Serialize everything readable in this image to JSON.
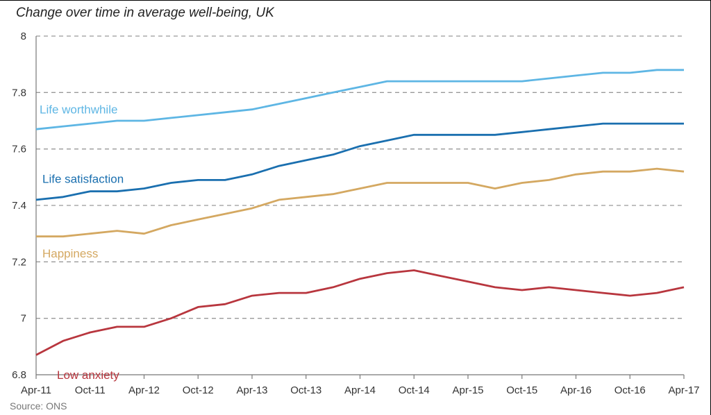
{
  "title": "Change over time in average well-being, UK",
  "source": "Source: ONS",
  "chart_data": {
    "type": "line",
    "title": "Change over time in average well-being, UK",
    "xlabel": "",
    "ylabel": "",
    "ylim": [
      6.8,
      8.0
    ],
    "yticks": [
      "6.8",
      "7",
      "7.2",
      "7.4",
      "7.6",
      "7.8",
      "8"
    ],
    "ytick_values": [
      6.8,
      7.0,
      7.2,
      7.4,
      7.6,
      7.8,
      8.0
    ],
    "grid": "horizontal dashed",
    "x": [
      "Apr-11",
      "Jul-11",
      "Oct-11",
      "Jan-12",
      "Apr-12",
      "Jul-12",
      "Oct-12",
      "Jan-13",
      "Apr-13",
      "Jul-13",
      "Oct-13",
      "Jan-14",
      "Apr-14",
      "Jul-14",
      "Oct-14",
      "Jan-15",
      "Apr-15",
      "Jul-15",
      "Oct-15",
      "Jan-16",
      "Apr-16",
      "Jul-16",
      "Oct-16",
      "Jan-17",
      "Apr-17"
    ],
    "xticks": [
      "Apr-11",
      "Oct-11",
      "Apr-12",
      "Oct-12",
      "Apr-13",
      "Oct-13",
      "Apr-14",
      "Oct-14",
      "Apr-15",
      "Oct-15",
      "Apr-16",
      "Oct-16",
      "Apr-17"
    ],
    "series": [
      {
        "name": "Life worthwhile",
        "color": "#5eb6e4",
        "values": [
          7.67,
          7.68,
          7.69,
          7.7,
          7.7,
          7.71,
          7.72,
          7.73,
          7.74,
          7.76,
          7.78,
          7.8,
          7.82,
          7.84,
          7.84,
          7.84,
          7.84,
          7.84,
          7.84,
          7.85,
          7.86,
          7.87,
          7.87,
          7.88,
          7.88
        ]
      },
      {
        "name": "Life satisfaction",
        "color": "#1a6faf",
        "values": [
          7.42,
          7.43,
          7.45,
          7.45,
          7.46,
          7.48,
          7.49,
          7.49,
          7.51,
          7.54,
          7.56,
          7.58,
          7.61,
          7.63,
          7.65,
          7.65,
          7.65,
          7.65,
          7.66,
          7.67,
          7.68,
          7.69,
          7.69,
          7.69,
          7.69
        ]
      },
      {
        "name": "Happiness",
        "color": "#d4a861",
        "values": [
          7.29,
          7.29,
          7.3,
          7.31,
          7.3,
          7.33,
          7.35,
          7.37,
          7.39,
          7.42,
          7.43,
          7.44,
          7.46,
          7.48,
          7.48,
          7.48,
          7.48,
          7.46,
          7.48,
          7.49,
          7.51,
          7.52,
          7.52,
          7.53,
          7.52
        ]
      },
      {
        "name": "Low anxiety",
        "color": "#b8363e",
        "values": [
          6.87,
          6.92,
          6.95,
          6.97,
          6.97,
          7.0,
          7.04,
          7.05,
          7.08,
          7.09,
          7.09,
          7.11,
          7.14,
          7.16,
          7.17,
          7.15,
          7.13,
          7.11,
          7.1,
          7.11,
          7.1,
          7.09,
          7.08,
          7.09,
          7.11
        ]
      }
    ]
  }
}
